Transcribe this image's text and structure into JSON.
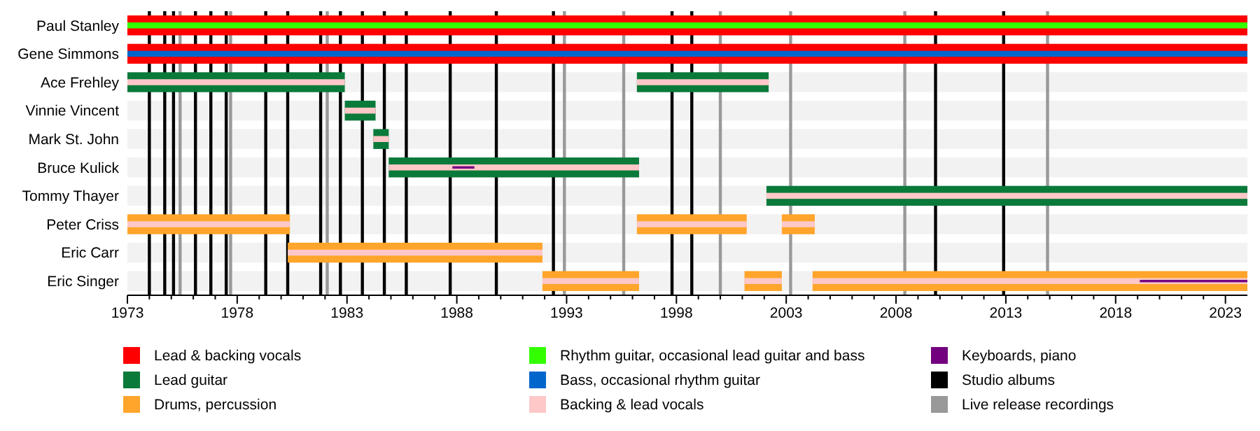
{
  "chart_data": {
    "type": "bar",
    "orientation": "horizontal",
    "xlim": [
      1973,
      2024
    ],
    "categories": [
      "Paul Stanley",
      "Gene Simmons",
      "Ace Frehley",
      "Vinnie Vincent",
      "Mark St. John",
      "Bruce Kulick",
      "Tommy Thayer",
      "Peter Criss",
      "Eric Carr",
      "Eric Singer"
    ],
    "xticks": [
      1973,
      {
        "value": 1974,
        "label": null
      },
      {
        "value": 1975,
        "label": null
      },
      {
        "value": 1976,
        "label": null
      },
      {
        "value": 1977,
        "label": null
      },
      1978,
      {
        "value": 1979,
        "label": null
      },
      {
        "value": 1980,
        "label": null
      },
      {
        "value": 1981,
        "label": null
      },
      {
        "value": 1982,
        "label": null
      },
      1983,
      {
        "value": 1984,
        "label": null
      },
      {
        "value": 1985,
        "label": null
      },
      {
        "value": 1986,
        "label": null
      },
      {
        "value": 1987,
        "label": null
      },
      1988,
      {
        "value": 1989,
        "label": null
      },
      {
        "value": 1990,
        "label": null
      },
      {
        "value": 1991,
        "label": null
      },
      {
        "value": 1992,
        "label": null
      },
      1993,
      {
        "value": 1994,
        "label": null
      },
      {
        "value": 1995,
        "label": null
      },
      {
        "value": 1996,
        "label": null
      },
      {
        "value": 1997,
        "label": null
      },
      1998,
      {
        "value": 1999,
        "label": null
      },
      {
        "value": 2000,
        "label": null
      },
      {
        "value": 2001,
        "label": null
      },
      {
        "value": 2002,
        "label": null
      },
      2003,
      {
        "value": 2004,
        "label": null
      },
      {
        "value": 2005,
        "label": null
      },
      {
        "value": 2006,
        "label": null
      },
      {
        "value": 2007,
        "label": null
      },
      2008,
      {
        "value": 2009,
        "label": null
      },
      {
        "value": 2010,
        "label": null
      },
      {
        "value": 2011,
        "label": null
      },
      {
        "value": 2012,
        "label": null
      },
      2013,
      {
        "value": 2014,
        "label": null
      },
      {
        "value": 2015,
        "label": null
      },
      {
        "value": 2016,
        "label": null
      },
      {
        "value": 2017,
        "label": null
      },
      2018,
      {
        "value": 2019,
        "label": null
      },
      {
        "value": 2020,
        "label": null
      },
      {
        "value": 2021,
        "label": null
      },
      {
        "value": 2022,
        "label": null
      },
      2023
    ],
    "series": [
      {
        "name": "Lead & backing vocals",
        "color": "#ff0000",
        "values": [
          51,
          51,
          null,
          null,
          null,
          null,
          null,
          null,
          null,
          null
        ],
        "base": [
          1973,
          1973,
          null,
          null,
          null,
          null,
          null,
          null,
          null,
          null
        ]
      },
      {
        "name": "Lead guitar",
        "color": "#0a7a3a",
        "values": [
          null,
          null,
          9.9,
          1.4,
          0.7,
          11.4,
          21.9,
          null,
          null,
          null
        ],
        "base": [
          null,
          null,
          1973,
          1982.9,
          1984.2,
          1984.9,
          2002.1,
          null,
          null,
          null
        ]
      },
      {
        "name": "Drums, percussion",
        "color": "#ffa52b",
        "values": [
          null,
          null,
          null,
          null,
          null,
          null,
          null,
          7.4,
          11.6,
          4.4
        ],
        "base": [
          null,
          null,
          null,
          null,
          null,
          null,
          null,
          1973,
          1980.3,
          1991.9
        ]
      },
      {
        "color": "#0a7a3a",
        "values": [
          null,
          null,
          6.0,
          null,
          null,
          null,
          null,
          null,
          null,
          null
        ],
        "base": [
          null,
          null,
          1996.2,
          null,
          null,
          null,
          null,
          null,
          null,
          null
        ]
      },
      {
        "color": "#ffa52b",
        "values": [
          null,
          null,
          null,
          null,
          null,
          null,
          null,
          5.0,
          null,
          1.7
        ],
        "base": [
          null,
          null,
          null,
          null,
          null,
          null,
          null,
          1996.2,
          null,
          2001.1
        ]
      },
      {
        "color": "#ffa52b",
        "values": [
          null,
          null,
          null,
          null,
          null,
          null,
          null,
          1.5,
          null,
          19.8
        ],
        "base": [
          null,
          null,
          null,
          null,
          null,
          null,
          null,
          2002.8,
          null,
          2004.2
        ]
      },
      {
        "name": "Rhythm guitar, occasional lead guitar and bass",
        "color": "#33ff00",
        "values": [
          51,
          null,
          null,
          null,
          null,
          null,
          null,
          null,
          null,
          null
        ],
        "base": [
          1973,
          null,
          null,
          null,
          null,
          null,
          null,
          null,
          null,
          null
        ]
      },
      {
        "name": "Bass, occasional rhythm guitar",
        "color": "#0066cc",
        "values": [
          null,
          51,
          null,
          null,
          null,
          null,
          null,
          null,
          null,
          null
        ],
        "base": [
          null,
          1973,
          null,
          null,
          null,
          null,
          null,
          null,
          null,
          null
        ]
      },
      {
        "name": "Backing & lead vocals",
        "color": "#ffc8c8",
        "values": [
          null,
          null,
          9.9,
          1.4,
          0.7,
          11.4,
          21.9,
          7.4,
          11.6,
          4.4
        ],
        "base": [
          null,
          null,
          1973,
          1982.9,
          1984.2,
          1984.9,
          2002.1,
          1973,
          1980.3,
          1991.9
        ]
      },
      {
        "color": "#ffc8c8",
        "values": [
          null,
          null,
          6.0,
          null,
          null,
          null,
          null,
          5.0,
          null,
          1.7
        ],
        "base": [
          null,
          null,
          1996.2,
          null,
          null,
          null,
          null,
          1996.2,
          null,
          2001.1
        ]
      },
      {
        "color": "#ffc8c8",
        "values": [
          null,
          null,
          null,
          null,
          null,
          null,
          null,
          1.5,
          null,
          19.8
        ],
        "base": [
          null,
          null,
          null,
          null,
          null,
          null,
          null,
          2002.8,
          null,
          2004.2
        ]
      },
      {
        "name": "Keyboards, piano",
        "color": "#73007f",
        "values": [
          null,
          null,
          null,
          null,
          null,
          1.0,
          null,
          null,
          null,
          4.9
        ],
        "base": [
          null,
          null,
          null,
          null,
          null,
          1987.8,
          null,
          null,
          null,
          2019.1
        ]
      }
    ],
    "ref_lines": [
      {
        "axis": "x",
        "value": 1974.0,
        "color": "#000000",
        "label": "Studio albums"
      },
      {
        "axis": "x",
        "value": 1974.7,
        "color": "#000000"
      },
      {
        "axis": "x",
        "value": 1975.1,
        "color": "#000000"
      },
      {
        "axis": "x",
        "value": 1976.1,
        "color": "#000000"
      },
      {
        "axis": "x",
        "value": 1976.8,
        "color": "#000000"
      },
      {
        "axis": "x",
        "value": 1977.5,
        "color": "#000000"
      },
      {
        "axis": "x",
        "value": 1979.3,
        "color": "#000000"
      },
      {
        "axis": "x",
        "value": 1980.3,
        "color": "#000000"
      },
      {
        "axis": "x",
        "value": 1981.8,
        "color": "#000000"
      },
      {
        "axis": "x",
        "value": 1982.7,
        "color": "#000000"
      },
      {
        "axis": "x",
        "value": 1983.7,
        "color": "#000000"
      },
      {
        "axis": "x",
        "value": 1984.7,
        "color": "#000000"
      },
      {
        "axis": "x",
        "value": 1985.7,
        "color": "#000000"
      },
      {
        "axis": "x",
        "value": 1987.7,
        "color": "#000000"
      },
      {
        "axis": "x",
        "value": 1989.8,
        "color": "#000000"
      },
      {
        "axis": "x",
        "value": 1992.4,
        "color": "#000000"
      },
      {
        "axis": "x",
        "value": 1997.8,
        "color": "#000000"
      },
      {
        "axis": "x",
        "value": 1998.7,
        "color": "#000000"
      },
      {
        "axis": "x",
        "value": 2009.8,
        "color": "#000000"
      },
      {
        "axis": "x",
        "value": 2012.9,
        "color": "#000000"
      },
      {
        "axis": "x",
        "value": 1975.4,
        "color": "#999999",
        "label": "Live release recordings"
      },
      {
        "axis": "x",
        "value": 1977.7,
        "color": "#999999"
      },
      {
        "axis": "x",
        "value": 1982.1,
        "color": "#999999"
      },
      {
        "axis": "x",
        "value": 1992.9,
        "color": "#999999"
      },
      {
        "axis": "x",
        "value": 1995.6,
        "color": "#999999"
      },
      {
        "axis": "x",
        "value": 2000.0,
        "color": "#999999"
      },
      {
        "axis": "x",
        "value": 2003.2,
        "color": "#999999"
      },
      {
        "axis": "x",
        "value": 2008.4,
        "color": "#999999"
      },
      {
        "axis": "x",
        "value": 2014.9,
        "color": "#999999"
      }
    ],
    "legend": "bottom"
  }
}
